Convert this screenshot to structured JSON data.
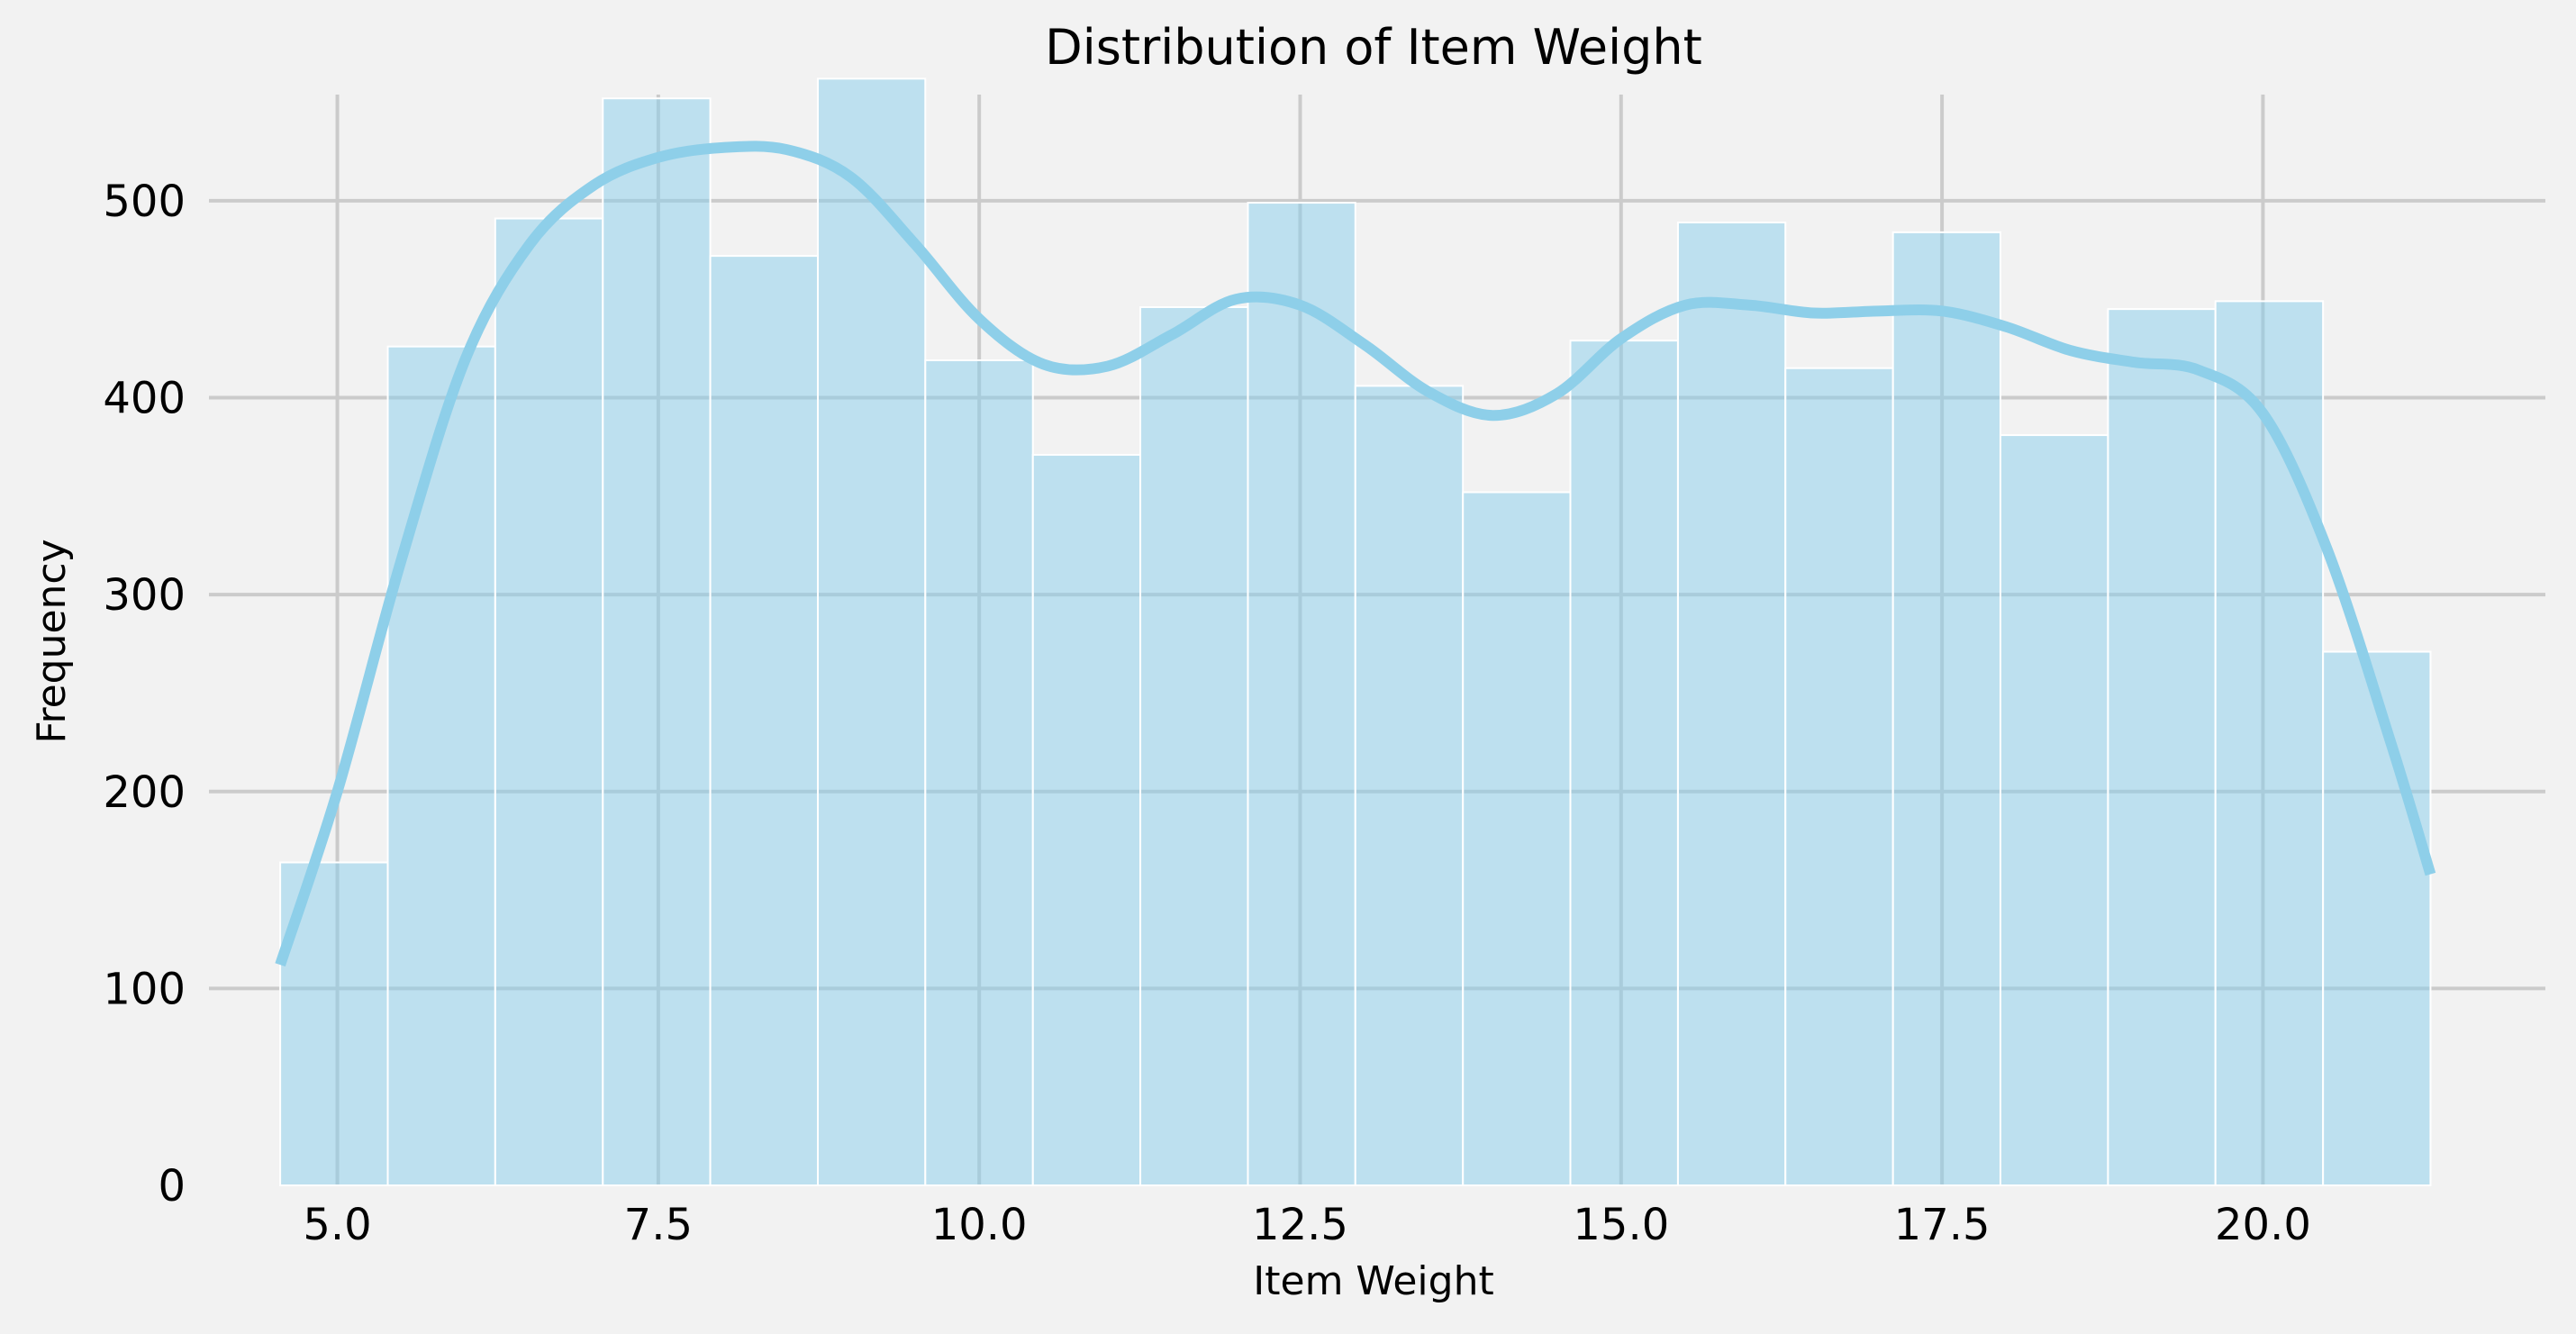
{
  "chart_data": {
    "type": "bar",
    "title": "Distribution of Item Weight",
    "xlabel": "Item Weight",
    "ylabel": "Frequency",
    "xlim": [
      4.0,
      22.2
    ],
    "ylim": [
      0,
      580
    ],
    "x_ticks": [
      5.0,
      7.5,
      10.0,
      12.5,
      15.0,
      17.5,
      20.0
    ],
    "x_tick_labels": [
      "5.0",
      "7.5",
      "10.0",
      "12.5",
      "15.0",
      "17.5",
      "20.0"
    ],
    "y_ticks": [
      0,
      100,
      200,
      300,
      400,
      500
    ],
    "y_tick_labels": [
      "0",
      "100",
      "200",
      "300",
      "400",
      "500"
    ],
    "grid": true,
    "bins": [
      {
        "x0": 4.555,
        "x1": 5.393,
        "count": 164
      },
      {
        "x0": 5.393,
        "x1": 6.23,
        "count": 426
      },
      {
        "x0": 6.23,
        "x1": 7.068,
        "count": 491
      },
      {
        "x0": 7.068,
        "x1": 7.905,
        "count": 552
      },
      {
        "x0": 7.905,
        "x1": 8.743,
        "count": 472
      },
      {
        "x0": 8.743,
        "x1": 9.58,
        "count": 562
      },
      {
        "x0": 9.58,
        "x1": 10.418,
        "count": 419
      },
      {
        "x0": 10.418,
        "x1": 11.255,
        "count": 371
      },
      {
        "x0": 11.255,
        "x1": 12.093,
        "count": 446
      },
      {
        "x0": 12.093,
        "x1": 12.93,
        "count": 499
      },
      {
        "x0": 12.93,
        "x1": 13.768,
        "count": 406
      },
      {
        "x0": 13.768,
        "x1": 14.605,
        "count": 352
      },
      {
        "x0": 14.605,
        "x1": 15.443,
        "count": 429
      },
      {
        "x0": 15.443,
        "x1": 16.28,
        "count": 489
      },
      {
        "x0": 16.28,
        "x1": 17.118,
        "count": 415
      },
      {
        "x0": 17.118,
        "x1": 17.955,
        "count": 484
      },
      {
        "x0": 17.955,
        "x1": 18.793,
        "count": 381
      },
      {
        "x0": 18.793,
        "x1": 19.63,
        "count": 445
      },
      {
        "x0": 19.63,
        "x1": 20.468,
        "count": 449
      },
      {
        "x0": 20.468,
        "x1": 21.305,
        "count": 271
      }
    ],
    "kde": {
      "x": [
        4.555,
        5.0,
        5.5,
        6.0,
        6.5,
        7.0,
        7.5,
        8.0,
        8.5,
        9.0,
        9.5,
        10.0,
        10.5,
        11.0,
        11.5,
        12.0,
        12.5,
        13.0,
        13.5,
        14.0,
        14.5,
        15.0,
        15.5,
        16.0,
        16.5,
        17.0,
        17.5,
        18.0,
        18.5,
        19.0,
        19.5,
        20.0,
        20.5,
        21.0,
        21.305
      ],
      "y": [
        112,
        200,
        318,
        420,
        478,
        508,
        522,
        527,
        526,
        512,
        478,
        440,
        417,
        416,
        432,
        450,
        447,
        427,
        403,
        391,
        402,
        430,
        447,
        447,
        443,
        444,
        444,
        436,
        424,
        418,
        414,
        392,
        323,
        224,
        158
      ]
    },
    "colors": {
      "bar_fill": "#87ceeb",
      "kde_line": "#8ecfe9",
      "background": "#f2f2f2",
      "grid": "#cbcbcb"
    }
  }
}
